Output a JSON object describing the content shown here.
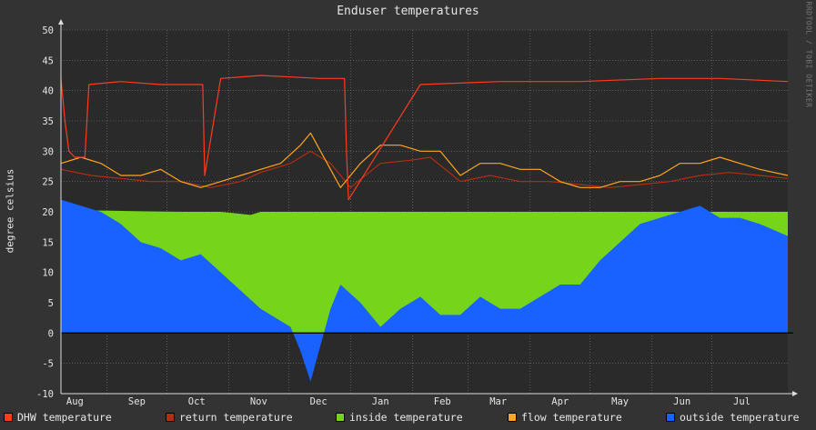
{
  "watermark": "RRDTOOL / TOBI OETIKER",
  "colors": {
    "background": "#333333",
    "plot_background": "#2a2a2a",
    "grid": "#7a7a7a",
    "text": "#e6e6e6"
  },
  "chart_data": {
    "type": "area",
    "title": "Enduser temperatures",
    "ylabel": "degree celsius",
    "xlabel": "",
    "ylim": [
      -10,
      50
    ],
    "yticks": [
      -10,
      -5,
      0,
      5,
      10,
      15,
      20,
      25,
      30,
      35,
      40,
      45,
      50
    ],
    "x_range_days": [
      0,
      364
    ],
    "months": [
      {
        "label": "Aug",
        "start_day": -8
      },
      {
        "label": "Sep",
        "start_day": 23
      },
      {
        "label": "Oct",
        "start_day": 53
      },
      {
        "label": "Nov",
        "start_day": 84
      },
      {
        "label": "Dec",
        "start_day": 114
      },
      {
        "label": "Jan",
        "start_day": 145
      },
      {
        "label": "Feb",
        "start_day": 176
      },
      {
        "label": "Mar",
        "start_day": 204
      },
      {
        "label": "Apr",
        "start_day": 235
      },
      {
        "label": "May",
        "start_day": 265
      },
      {
        "label": "Jun",
        "start_day": 296
      },
      {
        "label": "Jul",
        "start_day": 326
      }
    ],
    "grid": true,
    "legend_position": "bottom",
    "series": [
      {
        "name": "DHW temperature",
        "color": "#ff3a1f",
        "style": "line",
        "x": [
          0,
          2,
          4,
          7,
          12,
          14,
          30,
          50,
          71,
          72,
          80,
          100,
          130,
          142,
          143,
          144,
          180,
          220,
          260,
          300,
          330,
          364
        ],
        "y": [
          42,
          35,
          30,
          29,
          29,
          41,
          41.5,
          41,
          41,
          26,
          42,
          42.5,
          42,
          42,
          30,
          22,
          41,
          41.5,
          41.5,
          42,
          42,
          41.5
        ]
      },
      {
        "name": "return temperature",
        "color": "#b32d12",
        "style": "line",
        "x": [
          0,
          15,
          30,
          45,
          60,
          75,
          90,
          100,
          115,
          125,
          135,
          145,
          160,
          175,
          185,
          200,
          215,
          230,
          245,
          260,
          275,
          290,
          305,
          320,
          335,
          350,
          364
        ],
        "y": [
          27,
          26,
          25.5,
          25,
          25,
          24,
          25,
          26.5,
          28,
          30,
          28,
          24,
          28,
          28.5,
          29,
          25,
          26,
          25,
          25,
          24.5,
          24,
          24.5,
          25,
          26,
          26.5,
          26,
          25.5
        ]
      },
      {
        "name": "inside temperature",
        "color": "#76d41a",
        "style": "area",
        "x": [
          0,
          20,
          40,
          60,
          80,
          95,
          100,
          120,
          145,
          170,
          190,
          210,
          230,
          250,
          270,
          300,
          330,
          364
        ],
        "y": [
          20.2,
          20.2,
          20.1,
          20,
          20,
          19.5,
          20,
          20,
          20,
          20,
          20,
          20,
          20,
          20,
          20,
          20,
          20,
          20
        ]
      },
      {
        "name": "flow temperature",
        "color": "#ffa51a",
        "style": "line",
        "x": [
          0,
          10,
          20,
          30,
          40,
          50,
          60,
          70,
          80,
          90,
          100,
          110,
          120,
          125,
          130,
          140,
          150,
          160,
          170,
          180,
          190,
          200,
          210,
          220,
          230,
          240,
          250,
          260,
          270,
          280,
          290,
          300,
          310,
          320,
          330,
          340,
          350,
          364
        ],
        "y": [
          28,
          29,
          28,
          26,
          26,
          27,
          25,
          24,
          25,
          26,
          27,
          28,
          31,
          33,
          30,
          24,
          28,
          31,
          31,
          30,
          30,
          26,
          28,
          28,
          27,
          27,
          25,
          24,
          24,
          25,
          25,
          26,
          28,
          28,
          29,
          28,
          27,
          26
        ]
      },
      {
        "name": "outside temperature",
        "color": "#1a62ff",
        "style": "area",
        "x": [
          0,
          10,
          20,
          30,
          40,
          50,
          60,
          70,
          80,
          90,
          100,
          110,
          115,
          120,
          125,
          130,
          135,
          140,
          150,
          160,
          170,
          180,
          190,
          200,
          210,
          220,
          230,
          240,
          250,
          260,
          270,
          280,
          290,
          300,
          310,
          320,
          330,
          340,
          350,
          364
        ],
        "y": [
          22,
          21,
          20,
          18,
          15,
          14,
          12,
          13,
          10,
          7,
          4,
          2,
          1,
          -3,
          -8,
          -2,
          4,
          8,
          5,
          1,
          4,
          6,
          3,
          3,
          6,
          4,
          4,
          6,
          8,
          8,
          12,
          15,
          18,
          19,
          20,
          21,
          19,
          19,
          18,
          16
        ]
      }
    ]
  }
}
